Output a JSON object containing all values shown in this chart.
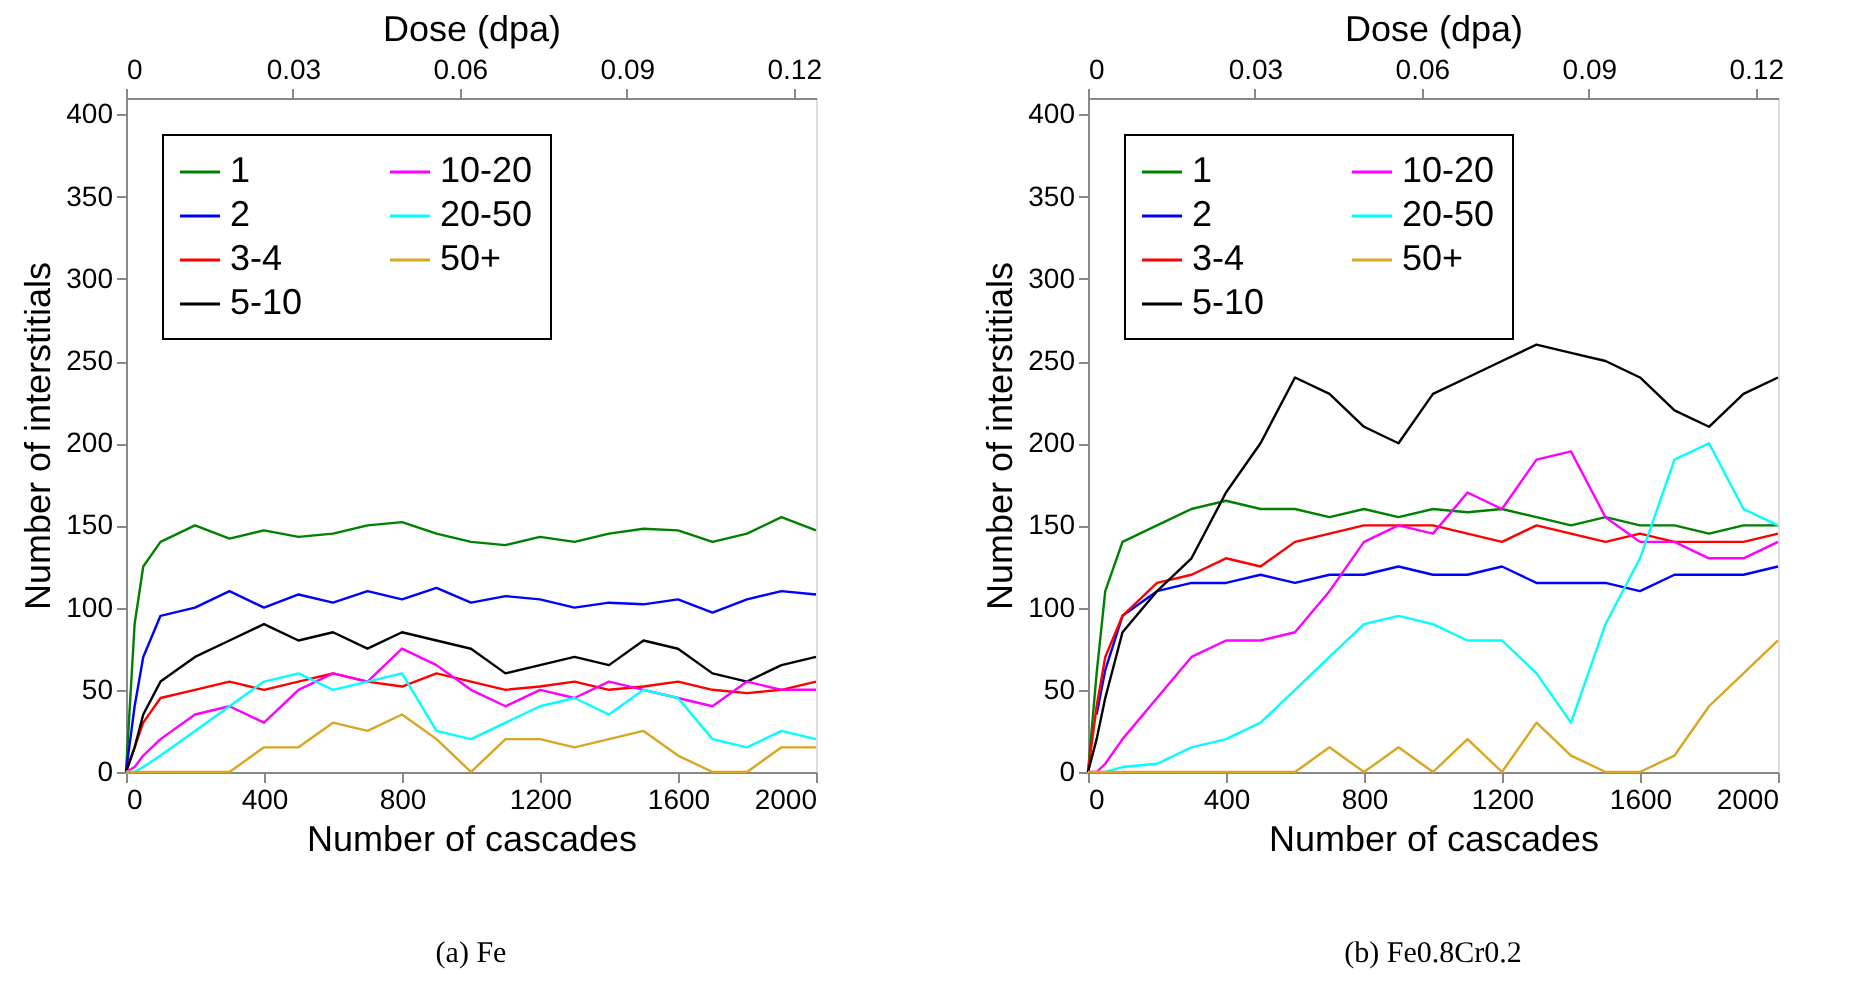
{
  "chart_data": [
    {
      "type": "line",
      "xlabel": "Number of cascades",
      "ylabel": "Number of interstitials",
      "x2label": "Dose (dpa)",
      "annotations": [
        "(a) Fe"
      ],
      "x": [
        0,
        25,
        50,
        100,
        200,
        300,
        400,
        500,
        600,
        700,
        800,
        900,
        1000,
        1100,
        1200,
        1300,
        1400,
        1500,
        1600,
        1700,
        1800,
        1900,
        2000
      ],
      "xlim": [
        0,
        2000
      ],
      "xticks": [
        0,
        400,
        800,
        1200,
        1600,
        2000
      ],
      "x2lim": [
        0,
        0.124
      ],
      "x2ticks": [
        0,
        0.03,
        0.06,
        0.09,
        0.12
      ],
      "ylim": [
        0,
        410
      ],
      "yticks": [
        0,
        50,
        100,
        150,
        200,
        250,
        300,
        350,
        400
      ],
      "grid": false,
      "legend": "top left",
      "line_style": "solid",
      "marker": "none",
      "series": [
        {
          "name": "1",
          "color": "#008000",
          "values": [
            0,
            90,
            125,
            140,
            150,
            142,
            147,
            143,
            145,
            150,
            152,
            145,
            140,
            138,
            143,
            140,
            145,
            148,
            147,
            140,
            145,
            155,
            147
          ]
        },
        {
          "name": "2",
          "color": "#0000ff",
          "values": [
            0,
            40,
            70,
            95,
            100,
            110,
            100,
            108,
            103,
            110,
            105,
            112,
            103,
            107,
            105,
            100,
            103,
            102,
            105,
            97,
            105,
            110,
            108
          ]
        },
        {
          "name": "3-4",
          "color": "#ff0000",
          "values": [
            0,
            15,
            30,
            45,
            50,
            55,
            50,
            55,
            60,
            55,
            52,
            60,
            55,
            50,
            52,
            55,
            50,
            52,
            55,
            50,
            48,
            50,
            55
          ]
        },
        {
          "name": "5-10",
          "color": "#000000",
          "values": [
            0,
            15,
            35,
            55,
            70,
            80,
            90,
            80,
            85,
            75,
            85,
            80,
            75,
            60,
            65,
            70,
            65,
            80,
            75,
            60,
            55,
            65,
            70
          ]
        },
        {
          "name": "10-20",
          "color": "#ff00ff",
          "values": [
            0,
            3,
            10,
            20,
            35,
            40,
            30,
            50,
            60,
            55,
            75,
            65,
            50,
            40,
            50,
            45,
            55,
            50,
            45,
            40,
            55,
            50,
            50
          ]
        },
        {
          "name": "20-50",
          "color": "#00ffff",
          "values": [
            0,
            0,
            3,
            10,
            25,
            40,
            55,
            60,
            50,
            55,
            60,
            25,
            20,
            30,
            40,
            45,
            35,
            50,
            45,
            20,
            15,
            25,
            20
          ]
        },
        {
          "name": "50+",
          "color": "#daa520",
          "values": [
            0,
            0,
            0,
            0,
            0,
            0,
            15,
            15,
            30,
            25,
            35,
            20,
            0,
            20,
            20,
            15,
            20,
            25,
            10,
            0,
            0,
            15,
            15
          ]
        }
      ]
    },
    {
      "type": "line",
      "xlabel": "Number of cascades",
      "ylabel": "Number of interstitials",
      "x2label": "Dose (dpa)",
      "annotations": [
        "(b) Fe0.8Cr0.2"
      ],
      "x": [
        0,
        25,
        50,
        100,
        200,
        300,
        400,
        500,
        600,
        700,
        800,
        900,
        1000,
        1100,
        1200,
        1300,
        1400,
        1500,
        1600,
        1700,
        1800,
        1900,
        2000
      ],
      "xlim": [
        0,
        2000
      ],
      "xticks": [
        0,
        400,
        800,
        1200,
        1600,
        2000
      ],
      "x2lim": [
        0,
        0.124
      ],
      "x2ticks": [
        0,
        0.03,
        0.06,
        0.09,
        0.12
      ],
      "ylim": [
        0,
        410
      ],
      "yticks": [
        0,
        50,
        100,
        150,
        200,
        250,
        300,
        350,
        400
      ],
      "grid": false,
      "legend": "top left",
      "line_style": "solid",
      "marker": "none",
      "series": [
        {
          "name": "1",
          "color": "#008000",
          "values": [
            0,
            60,
            110,
            140,
            150,
            160,
            165,
            160,
            160,
            155,
            160,
            155,
            160,
            158,
            160,
            155,
            150,
            155,
            150,
            150,
            145,
            150,
            150
          ]
        },
        {
          "name": "2",
          "color": "#0000ff",
          "values": [
            null,
            35,
            62,
            95,
            110,
            115,
            115,
            120,
            115,
            120,
            120,
            125,
            120,
            120,
            125,
            115,
            115,
            115,
            110,
            120,
            120,
            120,
            125
          ]
        },
        {
          "name": "3-4",
          "color": "#ff0000",
          "values": [
            0,
            40,
            70,
            95,
            115,
            120,
            130,
            125,
            140,
            145,
            150,
            150,
            150,
            145,
            140,
            150,
            145,
            140,
            145,
            140,
            140,
            140,
            145
          ]
        },
        {
          "name": "5-10",
          "color": "#000000",
          "values": [
            0,
            20,
            45,
            85,
            110,
            130,
            170,
            200,
            240,
            230,
            210,
            200,
            230,
            240,
            250,
            260,
            255,
            250,
            240,
            220,
            210,
            230,
            240
          ]
        },
        {
          "name": "10-20",
          "color": "#ff00ff",
          "values": [
            0,
            0,
            5,
            20,
            45,
            70,
            80,
            80,
            85,
            110,
            140,
            150,
            145,
            170,
            160,
            190,
            195,
            155,
            140,
            140,
            130,
            130,
            140
          ]
        },
        {
          "name": "20-50",
          "color": "#00ffff",
          "values": [
            null,
            null,
            0,
            3,
            5,
            15,
            20,
            30,
            50,
            70,
            90,
            95,
            90,
            80,
            80,
            60,
            30,
            90,
            130,
            190,
            200,
            160,
            150
          ]
        },
        {
          "name": "50+",
          "color": "#daa520",
          "values": [
            0,
            0,
            0,
            0,
            0,
            0,
            0,
            0,
            0,
            15,
            0,
            15,
            0,
            20,
            0,
            30,
            10,
            0,
            0,
            10,
            40,
            60,
            80
          ]
        }
      ]
    }
  ]
}
